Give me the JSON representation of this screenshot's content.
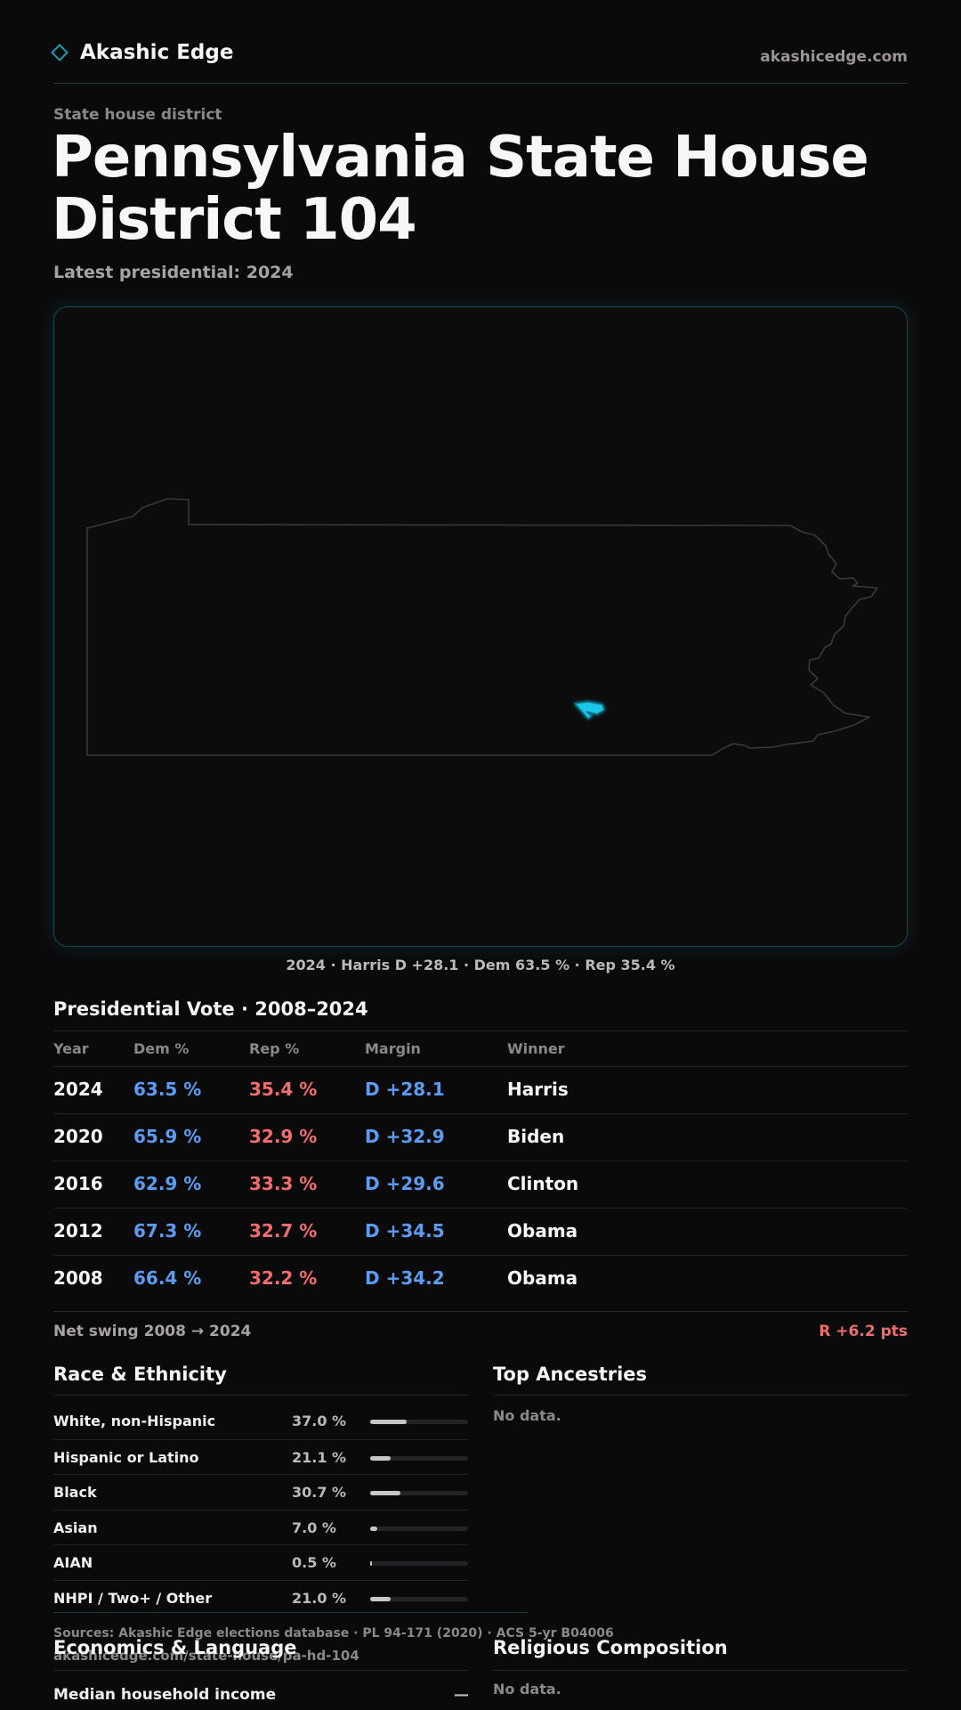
{
  "brand": {
    "name": "Akashic Edge",
    "site": "akashicedge.com"
  },
  "page": {
    "kicker": "State house district",
    "title": "Pennsylvania State House District 104",
    "subtitle": "Latest presidential: 2024"
  },
  "map": {
    "caption": "2024 · Harris D +28.1 · Dem 63.5 % · Rep 35.4 %",
    "state_outline_color": "#3a383a",
    "district_color": "#1ec8e8"
  },
  "presidential": {
    "title": "Presidential Vote · 2008–2024",
    "headers": {
      "year": "Year",
      "dem": "Dem %",
      "rep": "Rep %",
      "margin": "Margin",
      "winner": "Winner"
    },
    "rows": [
      {
        "year": "2024",
        "dem": "63.5 %",
        "rep": "35.4 %",
        "margin": "D +28.1",
        "winner": "Harris"
      },
      {
        "year": "2020",
        "dem": "65.9 %",
        "rep": "32.9 %",
        "margin": "D +32.9",
        "winner": "Biden"
      },
      {
        "year": "2016",
        "dem": "62.9 %",
        "rep": "33.3 %",
        "margin": "D +29.6",
        "winner": "Clinton"
      },
      {
        "year": "2012",
        "dem": "67.3 %",
        "rep": "32.7 %",
        "margin": "D +34.5",
        "winner": "Obama"
      },
      {
        "year": "2008",
        "dem": "66.4 %",
        "rep": "32.2 %",
        "margin": "D +34.2",
        "winner": "Obama"
      }
    ],
    "swing_label": "Net swing 2008 → 2024",
    "swing_value": "R +6.2 pts",
    "colors": {
      "dem": "#5b9cf0",
      "rep": "#ef6d6d"
    }
  },
  "race": {
    "title": "Race & Ethnicity",
    "rows": [
      {
        "name": "White, non-Hispanic",
        "pct": "37.0 %",
        "value": 37.0
      },
      {
        "name": "Hispanic or Latino",
        "pct": "21.1 %",
        "value": 21.1
      },
      {
        "name": "Black",
        "pct": "30.7 %",
        "value": 30.7
      },
      {
        "name": "Asian",
        "pct": "7.0 %",
        "value": 7.0
      },
      {
        "name": "AIAN",
        "pct": "0.5 %",
        "value": 0.5
      },
      {
        "name": "NHPI / Two+ / Other",
        "pct": "21.0 %",
        "value": 21.0
      }
    ]
  },
  "ancestries": {
    "title": "Top Ancestries",
    "empty": "No data."
  },
  "footer": {
    "sources": "Sources: Akashic Edge elections database · PL 94-171 (2020) · ACS 5-yr B04006",
    "url": "akashicedge.com/state-house/pa-hd-104"
  },
  "economics": {
    "title": "Economics & Language",
    "median_income_label": "Median household income",
    "median_income_value": "—"
  },
  "religion": {
    "title": "Religious Composition",
    "empty": "No data."
  }
}
